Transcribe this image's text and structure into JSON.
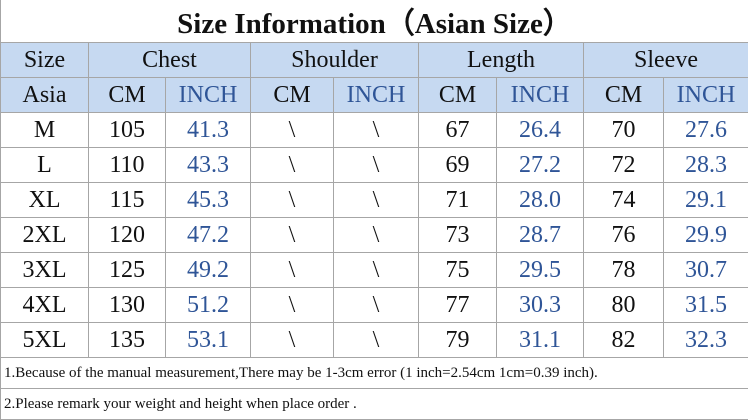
{
  "title": "Size Information（Asian Size）",
  "header": {
    "groups": [
      "Size",
      "Chest",
      "Shoulder",
      "Length",
      "Sleeve"
    ],
    "units": [
      "Asia",
      "CM",
      "INCH",
      "CM",
      "INCH",
      "CM",
      "INCH",
      "CM",
      "INCH"
    ]
  },
  "table": {
    "rows": [
      [
        "M",
        "105",
        "41.3",
        "\\",
        "\\",
        "67",
        "26.4",
        "70",
        "27.6"
      ],
      [
        "L",
        "110",
        "43.3",
        "\\",
        "\\",
        "69",
        "27.2",
        "72",
        "28.3"
      ],
      [
        "XL",
        "115",
        "45.3",
        "\\",
        "\\",
        "71",
        "28.0",
        "74",
        "29.1"
      ],
      [
        "2XL",
        "120",
        "47.2",
        "\\",
        "\\",
        "73",
        "28.7",
        "76",
        "29.9"
      ],
      [
        "3XL",
        "125",
        "49.2",
        "\\",
        "\\",
        "75",
        "29.5",
        "78",
        "30.7"
      ],
      [
        "4XL",
        "130",
        "51.2",
        "\\",
        "\\",
        "77",
        "30.3",
        "80",
        "31.5"
      ],
      [
        "5XL",
        "135",
        "53.1",
        "\\",
        "\\",
        "79",
        "31.1",
        "82",
        "32.3"
      ]
    ]
  },
  "notes": [
    "1.Because of the manual measurement,There may be 1-3cm error (1 inch=2.54cm 1cm=0.39 inch).",
    "2.Please remark your weight and height when place order ."
  ]
}
